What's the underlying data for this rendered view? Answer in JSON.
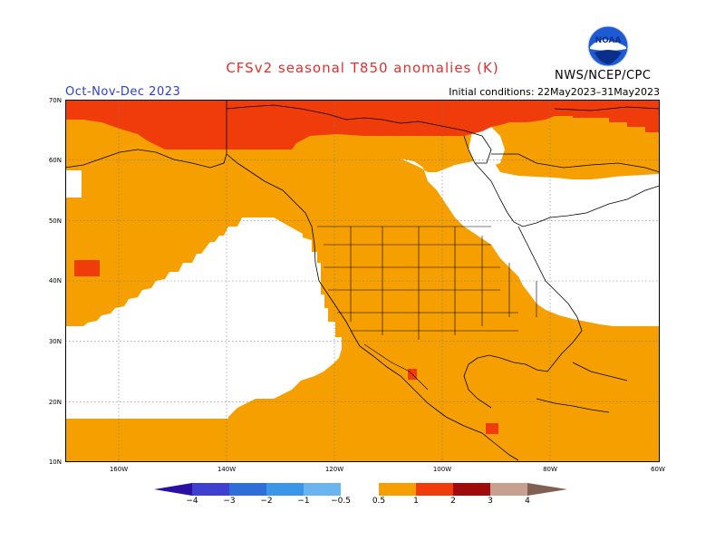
{
  "title": "CFSv2 seasonal T850 anomalies (K)",
  "period": "Oct-Nov-Dec 2023",
  "initial_conditions": "Initial conditions: 22May2023–31May2023",
  "agency": "NWS/NCEP/CPC",
  "logo_text": "NOAA",
  "lat_labels": [
    "70N",
    "60N",
    "50N",
    "40N",
    "30N",
    "20N",
    "10N"
  ],
  "lon_labels": [
    "160W",
    "140W",
    "120W",
    "100W",
    "80W",
    "60W"
  ],
  "colorbar_labels": [
    "−4",
    "−3",
    "−2",
    "−1",
    "−0.5",
    "0.5",
    "1",
    "2",
    "3",
    "4"
  ],
  "colors": {
    "c_lt4": "#2a10a0",
    "c_4_3": "#4040d0",
    "c_3_2": "#2d6ed8",
    "c_2_1": "#3a96e8",
    "c_1_05": "#6ab4f0",
    "c_neutral": "#ffffff",
    "c_05_1": "#f5a000",
    "c_1_2": "#f03c0a",
    "c_2_3": "#a00a0a",
    "c_3_4": "#c8a090",
    "c_gt4": "#806050",
    "title_color": "#e03030",
    "period_color": "#2a40c8"
  }
}
